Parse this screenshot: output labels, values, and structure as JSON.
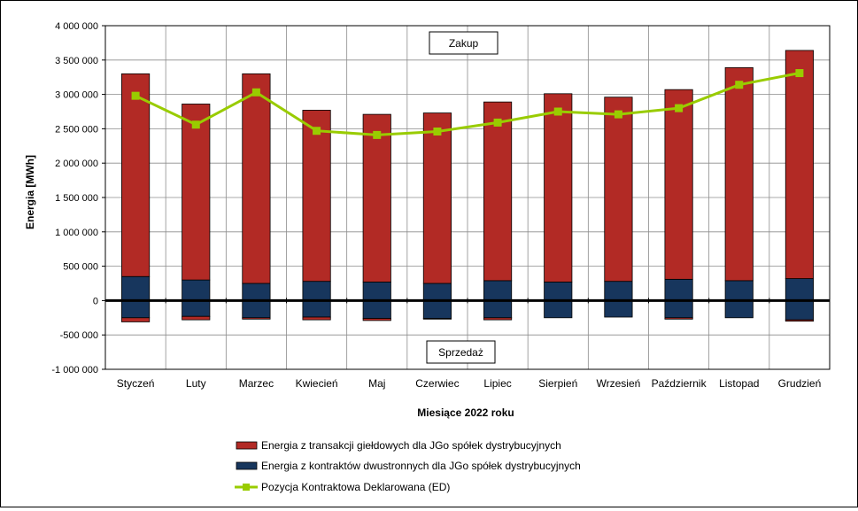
{
  "chart_data": {
    "type": "bar",
    "stacked": true,
    "title": "",
    "xlabel": "Miesiące 2022  roku",
    "ylabel": "Energia [MWh]",
    "ylim": [
      -1000000,
      4000000
    ],
    "ytick_step": 500000,
    "yticks_labels": [
      "4 000 000",
      "3 500 000",
      "3 000 000",
      "2 500 000",
      "2 000 000",
      "1 500 000",
      "1 000 000",
      "500 000",
      "0",
      "-500 000",
      "-1 000 000"
    ],
    "grid": true,
    "legend_position": "bottom",
    "categories": [
      "Styczeń",
      "Luty",
      "Marzec",
      "Kwiecień",
      "Maj",
      "Czerwiec",
      "Lipiec",
      "Sierpień",
      "Wrzesień",
      "Październik",
      "Listopad",
      "Grudzień"
    ],
    "annotations": {
      "purchase": "Zakup",
      "sale": "Sprzedaż"
    },
    "series": [
      {
        "name": "Energia z transakcji giełdowych dla JGo spółek dystrybucyjnych",
        "kind": "bar",
        "color": "#B22A25",
        "positive": [
          2950000,
          2560000,
          3050000,
          2490000,
          2440000,
          2480000,
          2600000,
          2740000,
          2680000,
          2760000,
          3100000,
          3320000
        ],
        "negative": [
          -60000,
          -50000,
          -20000,
          -40000,
          -30000,
          -10000,
          -30000,
          0,
          0,
          -20000,
          0,
          -20000
        ]
      },
      {
        "name": "Energia z kontraktów dwustronnych dla JGo spółek dystrybucyjnych",
        "kind": "bar",
        "color": "#17365D",
        "positive": [
          350000,
          300000,
          250000,
          280000,
          270000,
          250000,
          290000,
          270000,
          280000,
          310000,
          290000,
          320000
        ],
        "negative": [
          -250000,
          -230000,
          -250000,
          -240000,
          -260000,
          -260000,
          -250000,
          -250000,
          -240000,
          -250000,
          -250000,
          -280000
        ]
      },
      {
        "name": "Pozycja Kontraktowa Deklarowana (ED)",
        "kind": "line",
        "color": "#99CC00",
        "values": [
          2980000,
          2560000,
          3030000,
          2470000,
          2410000,
          2460000,
          2590000,
          2750000,
          2710000,
          2800000,
          3140000,
          3310000
        ]
      }
    ]
  }
}
